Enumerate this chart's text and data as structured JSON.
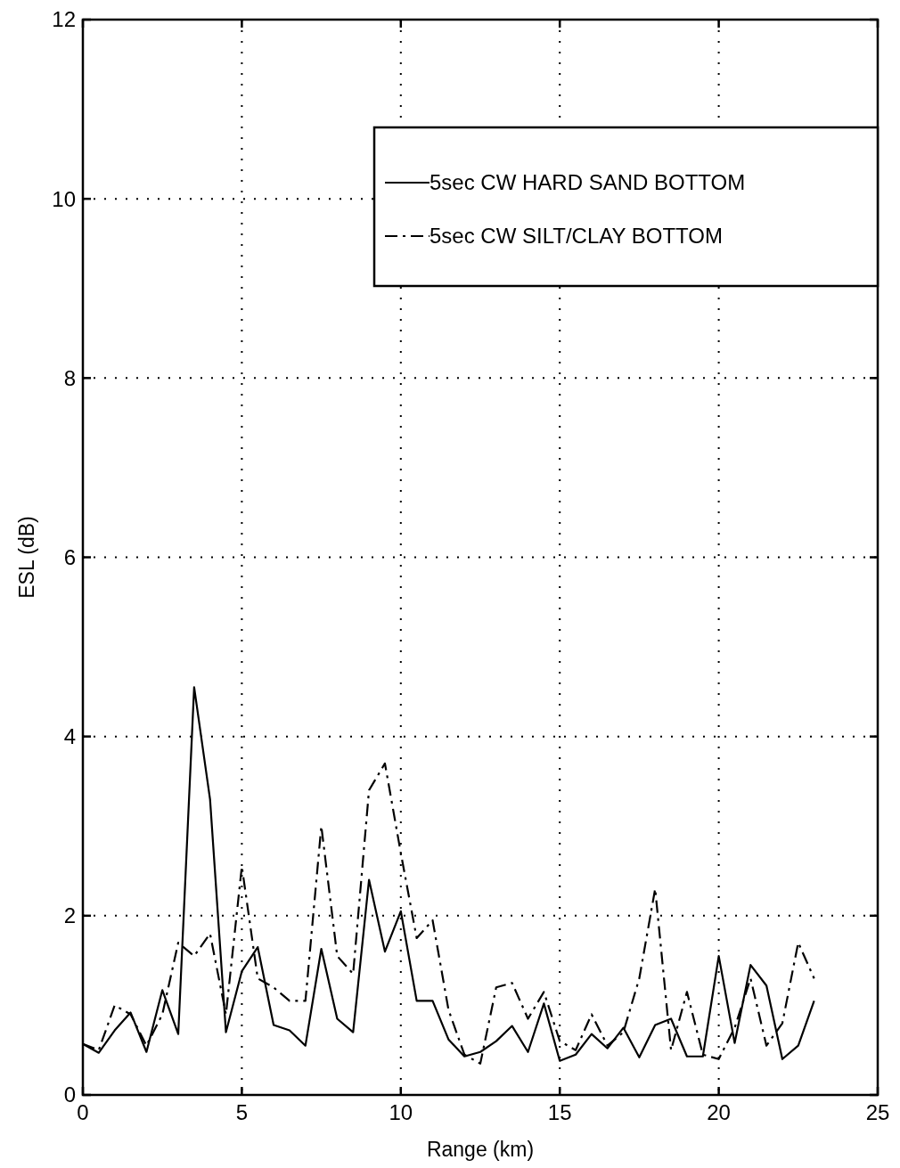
{
  "chart_data": {
    "type": "line",
    "xlabel": "Range (km)",
    "ylabel": "ESL (dB)",
    "x": [
      0,
      0.5,
      1,
      1.5,
      2,
      2.5,
      3,
      3.5,
      4,
      4.5,
      5,
      5.5,
      6,
      6.5,
      7,
      7.5,
      8,
      8.5,
      9,
      9.5,
      10,
      10.5,
      11,
      11.5,
      12,
      12.5,
      13,
      13.5,
      14,
      14.5,
      15,
      15.5,
      16,
      16.5,
      17,
      17.5,
      18,
      18.5,
      19,
      19.5,
      20,
      20.5,
      21,
      21.5,
      22,
      22.5,
      23
    ],
    "series": [
      {
        "name": "5sec CW HARD SAND BOTTOM",
        "color": "#000000",
        "line_style": "solid",
        "values": [
          0.57,
          0.47,
          0.72,
          0.92,
          0.48,
          1.17,
          0.68,
          4.55,
          3.3,
          0.7,
          1.38,
          1.65,
          0.78,
          0.72,
          0.55,
          1.63,
          0.85,
          0.7,
          2.4,
          1.6,
          2.05,
          1.05,
          1.05,
          0.62,
          0.43,
          0.48,
          0.6,
          0.77,
          0.48,
          1.02,
          0.38,
          0.45,
          0.68,
          0.52,
          0.75,
          0.42,
          0.78,
          0.85,
          0.43,
          0.43,
          1.55,
          0.58,
          1.45,
          1.22,
          0.4,
          0.55,
          1.05
        ]
      },
      {
        "name": "5sec CW SILT/CLAY BOTTOM",
        "color": "#000000",
        "line_style": "dashed",
        "values": [
          0.57,
          0.5,
          1.0,
          0.9,
          0.55,
          0.9,
          1.7,
          1.55,
          1.8,
          0.9,
          2.55,
          1.3,
          1.2,
          1.05,
          1.05,
          3.0,
          1.55,
          1.35,
          3.4,
          3.7,
          2.7,
          1.75,
          1.95,
          0.95,
          0.45,
          0.35,
          1.2,
          1.25,
          0.85,
          1.15,
          0.6,
          0.5,
          0.9,
          0.55,
          0.7,
          1.3,
          2.3,
          0.5,
          1.15,
          0.45,
          0.4,
          0.75,
          1.3,
          0.55,
          0.8,
          1.7,
          1.3
        ]
      }
    ],
    "xlim": [
      0,
      25
    ],
    "xticks": [
      0,
      5,
      10,
      15,
      20,
      25
    ],
    "ylim": [
      0,
      12
    ],
    "yticks": [
      0,
      2,
      4,
      6,
      8,
      10,
      12
    ],
    "grid": true,
    "legend": "top right",
    "marker": "none"
  }
}
